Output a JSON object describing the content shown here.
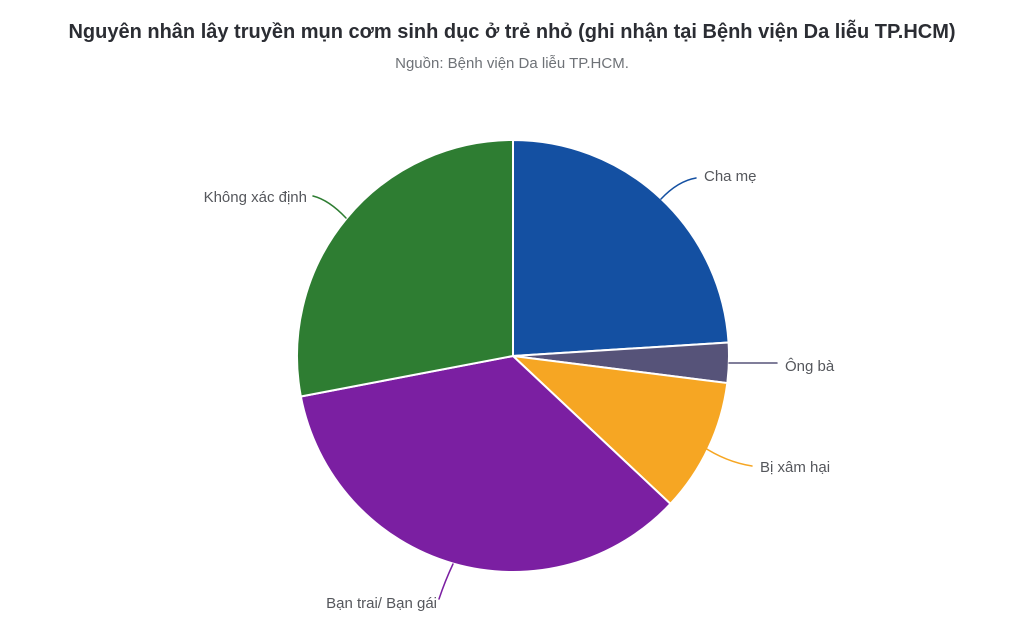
{
  "header": {
    "title": "Nguyên nhân lây truyền mụn cơm sinh dục ở trẻ nhỏ (ghi nhận tại Bệnh viện Da liễu TP.HCM)",
    "subtitle": "Nguồn: Bệnh viện Da liễu TP.HCM."
  },
  "chart_data": {
    "type": "pie",
    "title": "Nguyên nhân lây truyền mụn cơm sinh dục ở trẻ nhỏ (ghi nhận tại Bệnh viện Da liễu TP.HCM)",
    "subtitle": "Nguồn: Bệnh viện Da liễu TP.HCM.",
    "unit": "percent",
    "start_angle_deg": 0,
    "direction": "clockwise",
    "legend_position": "callout-labels",
    "background_color": "#ffffff",
    "slice_border_color": "#ffffff",
    "slices": [
      {
        "label": "Cha mẹ",
        "value": 24,
        "color": "#1450a2"
      },
      {
        "label": "Ông bà",
        "value": 3,
        "color": "#565379"
      },
      {
        "label": "Bị xâm hại",
        "value": 10,
        "color": "#f6a623"
      },
      {
        "label": "Bạn trai/ Bạn gái",
        "value": 35,
        "color": "#7b1fa2"
      },
      {
        "label": "Không xác định",
        "value": 28,
        "color": "#2e7d32"
      }
    ]
  }
}
